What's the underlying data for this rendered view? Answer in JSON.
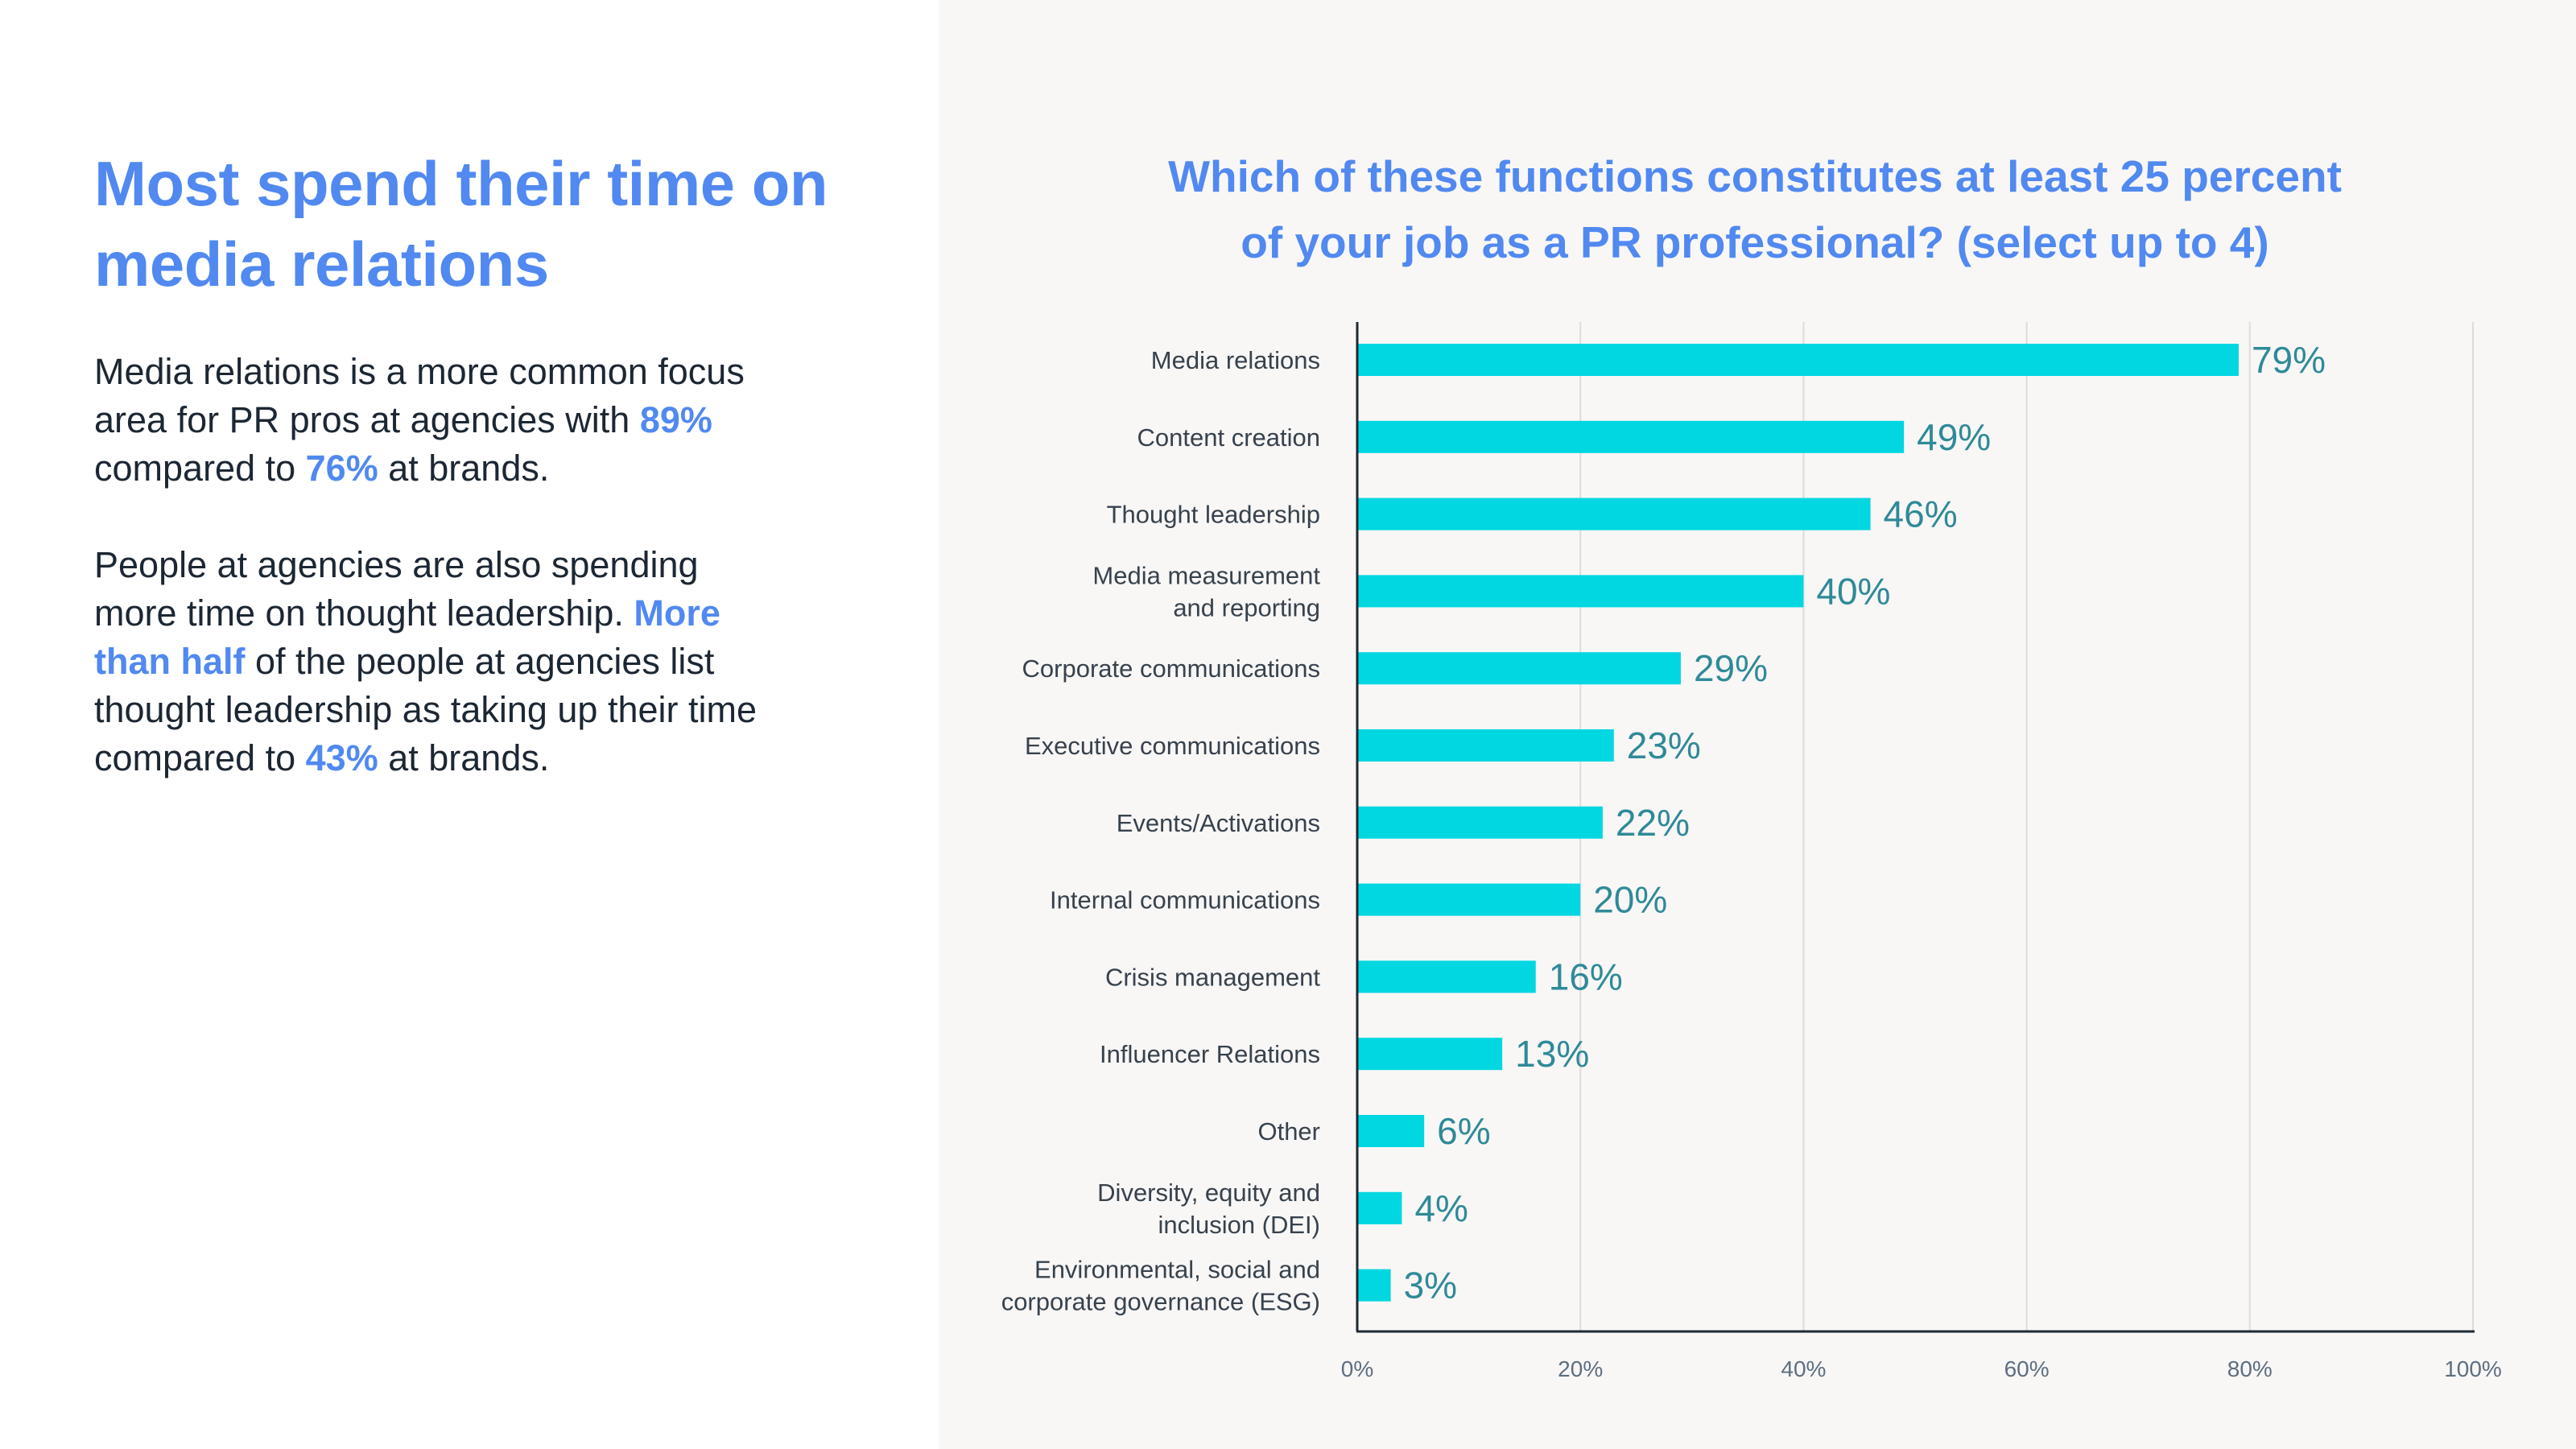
{
  "left": {
    "headline": "Most spend their time on media relations",
    "para1": {
      "t1": "Media relations is a more common focus area for PR pros at agencies with ",
      "h1": "89%",
      "t2": " compared to ",
      "h2": "76%",
      "t3": " at brands."
    },
    "para2": {
      "t1": "People at agencies are also spending more time on thought leadership. ",
      "h1": "More than half",
      "t2": " of the people at agencies list thought leadership as taking up their time compared to ",
      "h2": "43%",
      "t3": " at brands."
    }
  },
  "colors": {
    "accent": "#5189f0",
    "bar": "#00d7e0",
    "value_label": "#2f8a98",
    "axis": "#1e2a33",
    "grid": "#dcdcdc",
    "panel_bg": "#f8f7f6"
  },
  "chart_data": {
    "type": "bar",
    "orientation": "horizontal",
    "title_lines": [
      "Which of these functions constitutes at least 25 percent",
      "of your job as a PR professional? (select up to 4)"
    ],
    "categories": [
      [
        "Media relations"
      ],
      [
        "Content creation"
      ],
      [
        "Thought leadership"
      ],
      [
        "Media measurement",
        "and reporting"
      ],
      [
        "Corporate communications"
      ],
      [
        "Executive communications"
      ],
      [
        "Events/Activations"
      ],
      [
        "Internal communications"
      ],
      [
        "Crisis management"
      ],
      [
        "Influencer Relations"
      ],
      [
        "Other"
      ],
      [
        "Diversity, equity and",
        "inclusion (DEI)"
      ],
      [
        "Environmental, social and",
        "corporate governance (ESG)"
      ]
    ],
    "values": [
      79,
      49,
      46,
      40,
      29,
      23,
      22,
      20,
      16,
      13,
      6,
      4,
      3
    ],
    "value_labels": [
      "79%",
      "49%",
      "46%",
      "40%",
      "29%",
      "23%",
      "22%",
      "20%",
      "16%",
      "13%",
      "6%",
      "4%",
      "3%"
    ],
    "xlim": [
      0,
      100
    ],
    "xticks": [
      0,
      20,
      40,
      60,
      80,
      100
    ],
    "xtick_labels": [
      "0%",
      "20%",
      "40%",
      "60%",
      "80%",
      "100%"
    ],
    "grid": true,
    "legend": false
  }
}
